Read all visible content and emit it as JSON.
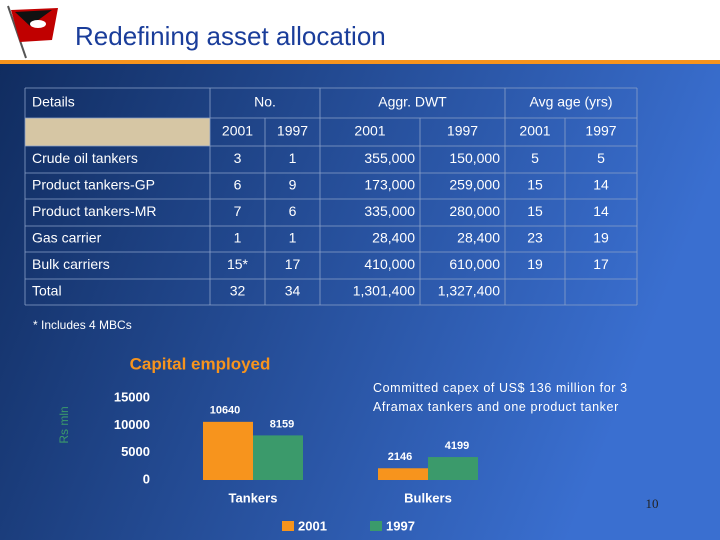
{
  "header": {
    "title": "Redefining asset allocation"
  },
  "table": {
    "columns": [
      "Details",
      "No.",
      "Aggr. DWT",
      "Avg age (yrs)"
    ],
    "subcolumns": [
      "2001",
      "1997",
      "2001",
      "1997",
      "2001",
      "1997"
    ],
    "rows": [
      [
        "Crude oil tankers",
        "3",
        "1",
        "355,000",
        "150,000",
        "5",
        "5"
      ],
      [
        "Product tankers-GP",
        "6",
        "9",
        "173,000",
        "259,000",
        "15",
        "14"
      ],
      [
        "Product tankers-MR",
        "7",
        "6",
        "335,000",
        "280,000",
        "15",
        "14"
      ],
      [
        "Gas carrier",
        "1",
        "1",
        "28,400",
        "28,400",
        "23",
        "19"
      ],
      [
        "Bulk carriers",
        "15*",
        "17",
        "410,000",
        "610,000",
        "19",
        "17"
      ],
      [
        "Total",
        "32",
        "34",
        "1,301,400",
        "1,327,400"
      ]
    ]
  },
  "footnote": "* Includes 4 MBCs",
  "chart_data": {
    "type": "bar",
    "title": "Capital employed",
    "y_label": "Rs mln",
    "categories": [
      "Tankers",
      "Bulkers"
    ],
    "series": [
      {
        "name": "2001",
        "color": "#f7941d",
        "values": [
          10640,
          2146
        ]
      },
      {
        "name": "1997",
        "color": "#3b9a6b",
        "values": [
          8159,
          4199
        ]
      }
    ],
    "ylim": [
      0,
      15000
    ],
    "yticks": [
      0,
      5000,
      10000,
      15000
    ]
  },
  "note": "Committed capex of US$ 136 million for 3 Aframax tankers and one product tanker",
  "page_number": "10"
}
